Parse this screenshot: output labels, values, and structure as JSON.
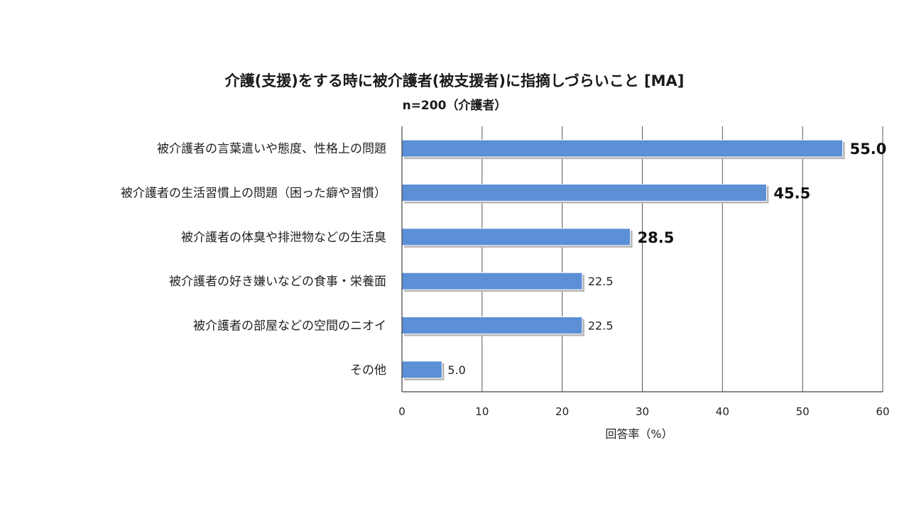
{
  "chart_data": {
    "type": "bar",
    "orientation": "horizontal",
    "title": "介護(支援)をする時に被介護者(被支援者)に指摘しづらいこと [MA]",
    "subtitle": "n=200（介護者）",
    "categories": [
      "被介護者の言葉遣いや態度、性格上の問題",
      "被介護者の生活習慣上の問題（困った癖や習慣）",
      "被介護者の体臭や排泄物などの生活臭",
      "被介護者の好き嫌いなどの食事・栄養面",
      "被介護者の部屋などの空間のニオイ",
      "その他"
    ],
    "values": [
      55.0,
      45.5,
      28.5,
      22.5,
      22.5,
      5.0
    ],
    "value_labels": [
      "55.0",
      "45.5",
      "28.5",
      "22.5",
      "22.5",
      "5.0"
    ],
    "highlighted": [
      true,
      true,
      true,
      false,
      false,
      false
    ],
    "xlabel": "回答率（%）",
    "xlim": [
      0,
      60
    ],
    "xticks": [
      "0",
      "10",
      "20",
      "30",
      "40",
      "50",
      "60"
    ],
    "grid": true,
    "bar_color": "#5B8FD6"
  }
}
